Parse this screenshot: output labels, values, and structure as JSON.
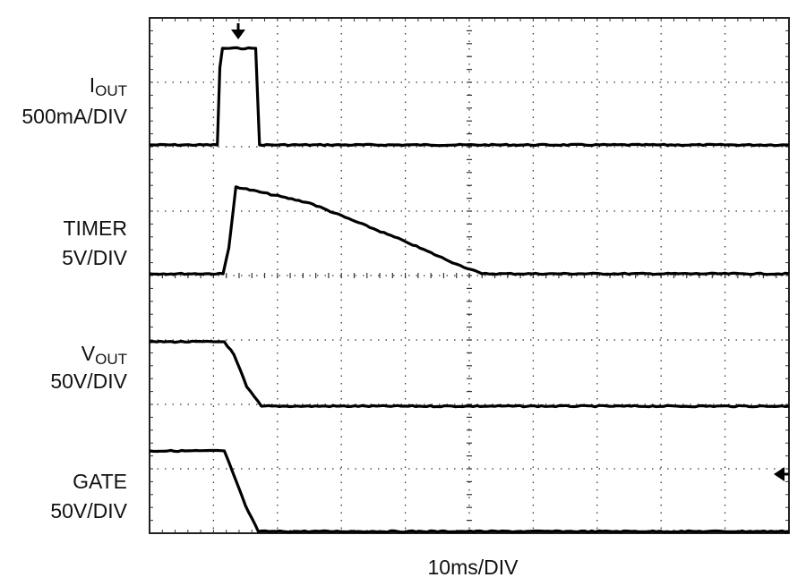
{
  "chart_data": {
    "type": "line",
    "xlabel": "10ms/DIV",
    "x_unit": "ms",
    "xlim": [
      0,
      100
    ],
    "x_per_div": 10,
    "divisions": {
      "x": 10,
      "y": 8
    },
    "grid": true,
    "markers": {
      "trigger_arrow": "top",
      "ground_arrow": "right"
    },
    "series": [
      {
        "id": "iout",
        "label_main": "I",
        "label_sub": "OUT",
        "scale": "500mA/DIV",
        "x": [
          0,
          10.6,
          11.0,
          11.4,
          16.6,
          17.2,
          100
        ],
        "y": [
          0,
          0,
          1.2,
          1.5,
          1.5,
          0,
          0
        ]
      },
      {
        "id": "timer",
        "label_main": "TIMER",
        "label_sub": "",
        "scale": "5V/DIV",
        "x": [
          0,
          11.5,
          12.4,
          13.5,
          25,
          40,
          48,
          52,
          100
        ],
        "y": [
          0,
          0,
          0.4,
          1.35,
          1.1,
          0.5,
          0.15,
          0,
          0
        ]
      },
      {
        "id": "vout",
        "label_main": "V",
        "label_sub": "OUT",
        "scale": "50V/DIV",
        "x": [
          0,
          11.7,
          13.2,
          15.2,
          17.5,
          100
        ],
        "y": [
          1.0,
          1.0,
          0.8,
          0.3,
          0,
          0
        ]
      },
      {
        "id": "gate",
        "label_main": "GATE",
        "label_sub": "",
        "scale": "50V/DIV",
        "x": [
          0,
          11.7,
          12.5,
          15.0,
          17.0,
          100
        ],
        "y": [
          1.25,
          1.25,
          1.05,
          0.4,
          0,
          0
        ]
      }
    ]
  }
}
